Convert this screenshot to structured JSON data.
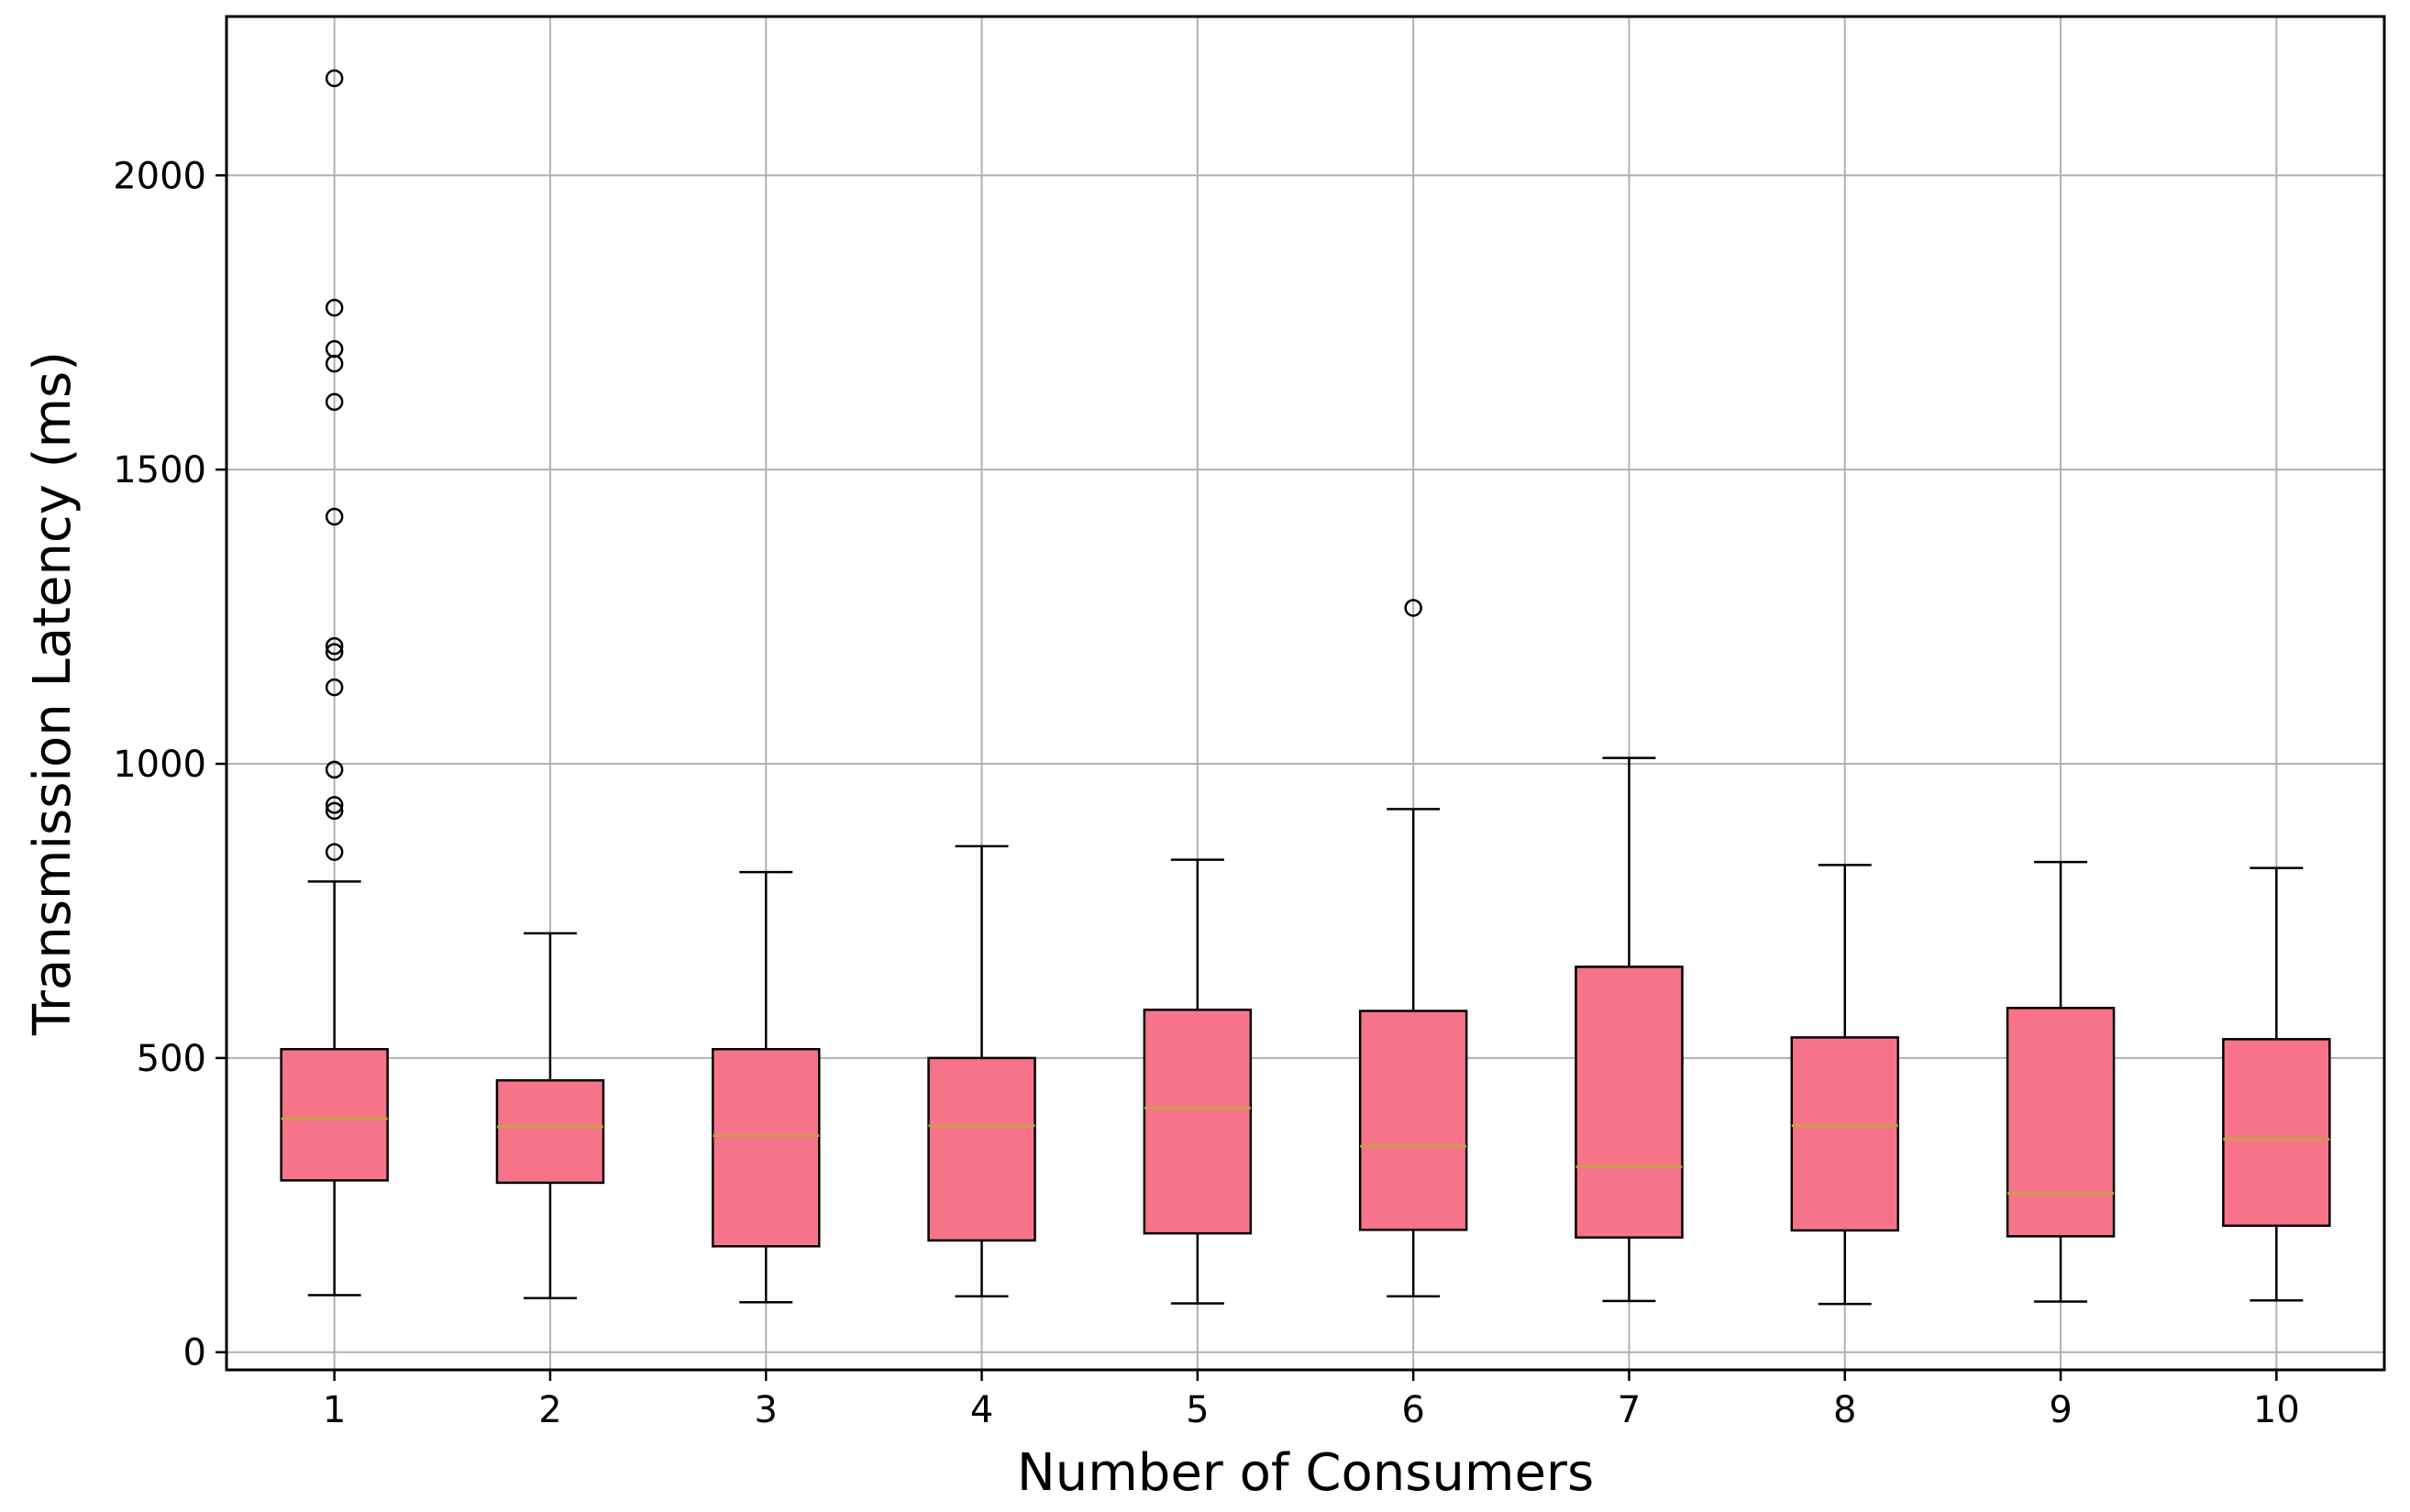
{
  "chart_data": {
    "type": "box",
    "title": "",
    "xlabel": "Number of Consumers",
    "ylabel": "Transmission Latency (ms)",
    "categories": [
      "1",
      "2",
      "3",
      "4",
      "5",
      "6",
      "7",
      "8",
      "9",
      "10"
    ],
    "ylim": [
      -30,
      2270
    ],
    "yticks": [
      0,
      500,
      1000,
      1500,
      2000
    ],
    "grid": true,
    "box_color": "#f7738a",
    "median_color": "#c5a046",
    "boxes": [
      {
        "category": "1",
        "whisker_low": 97,
        "q1": 292,
        "median": 397,
        "q3": 515,
        "whisker_high": 800,
        "outliers": [
          850,
          920,
          930,
          990,
          1130,
          1190,
          1200,
          1420,
          1615,
          1680,
          1705,
          1775,
          2165
        ]
      },
      {
        "category": "2",
        "whisker_low": 92,
        "q1": 288,
        "median": 383,
        "q3": 462,
        "whisker_high": 712,
        "outliers": []
      },
      {
        "category": "3",
        "whisker_low": 85,
        "q1": 180,
        "median": 368,
        "q3": 515,
        "whisker_high": 816,
        "outliers": []
      },
      {
        "category": "4",
        "whisker_low": 95,
        "q1": 190,
        "median": 385,
        "q3": 500,
        "whisker_high": 860,
        "outliers": []
      },
      {
        "category": "5",
        "whisker_low": 83,
        "q1": 202,
        "median": 415,
        "q3": 582,
        "whisker_high": 837,
        "outliers": []
      },
      {
        "category": "6",
        "whisker_low": 95,
        "q1": 208,
        "median": 350,
        "q3": 580,
        "whisker_high": 923,
        "outliers": [
          1265
        ]
      },
      {
        "category": "7",
        "whisker_low": 87,
        "q1": 195,
        "median": 315,
        "q3": 655,
        "whisker_high": 1010,
        "outliers": []
      },
      {
        "category": "8",
        "whisker_low": 82,
        "q1": 207,
        "median": 385,
        "q3": 535,
        "whisker_high": 828,
        "outliers": []
      },
      {
        "category": "9",
        "whisker_low": 86,
        "q1": 197,
        "median": 270,
        "q3": 585,
        "whisker_high": 833,
        "outliers": []
      },
      {
        "category": "10",
        "whisker_low": 88,
        "q1": 215,
        "median": 362,
        "q3": 532,
        "whisker_high": 823,
        "outliers": []
      }
    ]
  }
}
